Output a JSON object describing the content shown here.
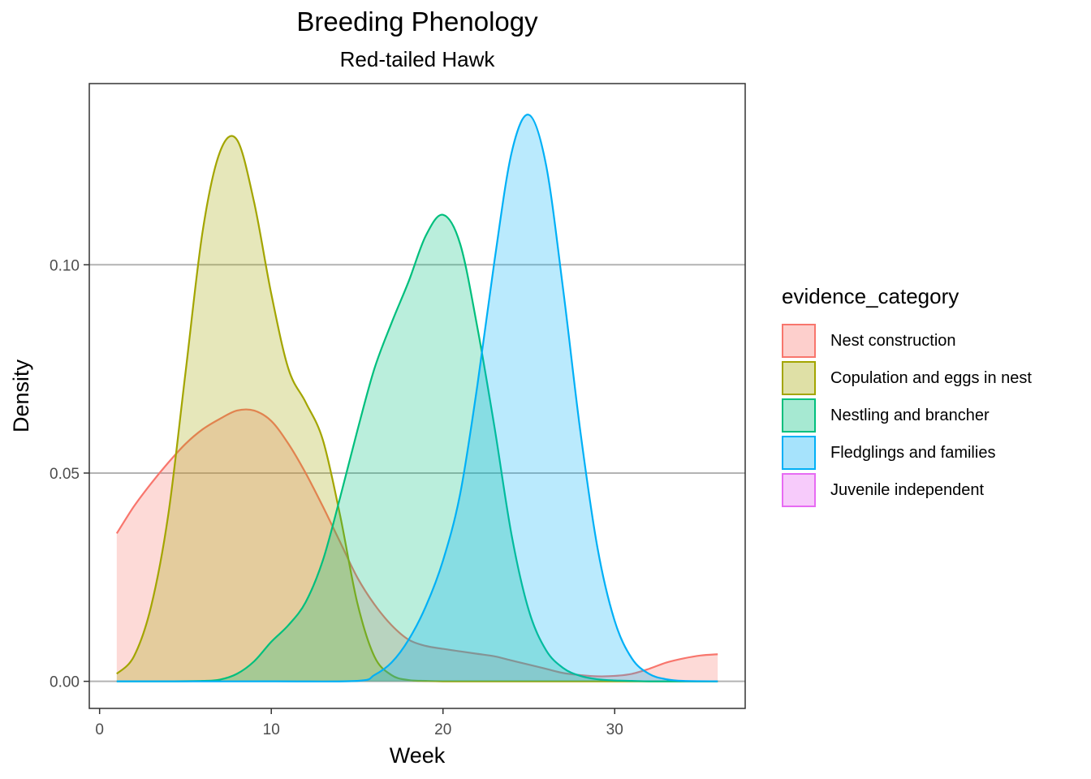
{
  "chart_data": {
    "type": "area",
    "title": "Breeding Phenology",
    "subtitle": "Red-tailed Hawk",
    "xlabel": "Week",
    "ylabel": "Density",
    "xlim": [
      -0.6,
      37.6
    ],
    "ylim": [
      -0.0065,
      0.1435
    ],
    "xticks": [
      0,
      10,
      20,
      30
    ],
    "xtick_labels": [
      "0",
      "10",
      "20",
      "30"
    ],
    "yticks": [
      0.0,
      0.05,
      0.1
    ],
    "ytick_labels": [
      "0.00",
      "0.05",
      "0.10"
    ],
    "grid": "horizontal-major",
    "legend_position": "right",
    "legend_title": "evidence_category",
    "series": [
      {
        "name": "Nest construction",
        "color": "#F8766D",
        "x": [
          1,
          2,
          3,
          4,
          5,
          6,
          7,
          8,
          9,
          10,
          11,
          12,
          13,
          14,
          15,
          16,
          17,
          18,
          19,
          20,
          21,
          22,
          23,
          24,
          25,
          26,
          27,
          28,
          29,
          30,
          31,
          32,
          33,
          34,
          35,
          36
        ],
        "y": [
          0.0355,
          0.042,
          0.0475,
          0.0525,
          0.057,
          0.0605,
          0.063,
          0.065,
          0.065,
          0.0625,
          0.057,
          0.05,
          0.042,
          0.0335,
          0.025,
          0.0185,
          0.0135,
          0.01,
          0.0085,
          0.0078,
          0.0072,
          0.0066,
          0.006,
          0.005,
          0.004,
          0.003,
          0.002,
          0.0015,
          0.0012,
          0.0013,
          0.0018,
          0.003,
          0.0045,
          0.0055,
          0.0062,
          0.0065
        ]
      },
      {
        "name": "Copulation and eggs in nest",
        "color": "#A3A500",
        "x": [
          1,
          2,
          3,
          4,
          5,
          6,
          7,
          8,
          9,
          10,
          11,
          12,
          13,
          14,
          15,
          16,
          17,
          18,
          19,
          20,
          22,
          25,
          30,
          36
        ],
        "y": [
          0.0018,
          0.006,
          0.018,
          0.04,
          0.074,
          0.108,
          0.127,
          0.13,
          0.115,
          0.093,
          0.075,
          0.067,
          0.058,
          0.04,
          0.019,
          0.006,
          0.0015,
          0.0003,
          0.0001,
          0.0,
          0.0,
          0.0,
          0.0,
          0.0
        ]
      },
      {
        "name": "Nestling and brancher",
        "color": "#00BF7D",
        "x": [
          1,
          4,
          6,
          7,
          8,
          9,
          10,
          11,
          12,
          13,
          14,
          15,
          16,
          17,
          18,
          19,
          20,
          21,
          22,
          23,
          24,
          25,
          26,
          27,
          28,
          29,
          30,
          31,
          32,
          33,
          36
        ],
        "y": [
          0.0,
          0.0,
          0.0001,
          0.0004,
          0.0018,
          0.0048,
          0.0095,
          0.0135,
          0.019,
          0.029,
          0.044,
          0.06,
          0.075,
          0.086,
          0.096,
          0.107,
          0.112,
          0.105,
          0.085,
          0.061,
          0.035,
          0.017,
          0.0075,
          0.0032,
          0.0013,
          0.0005,
          0.0002,
          0.0001,
          0.0,
          0.0,
          0.0
        ]
      },
      {
        "name": "Fledglings and families",
        "color": "#00B0F6",
        "x": [
          1,
          10,
          15,
          16,
          17,
          18,
          19,
          20,
          21,
          22,
          23,
          24,
          25,
          26,
          27,
          28,
          29,
          30,
          31,
          32,
          33,
          34,
          36
        ],
        "y": [
          0.0,
          0.0,
          0.0001,
          0.0015,
          0.0045,
          0.01,
          0.018,
          0.029,
          0.045,
          0.071,
          0.101,
          0.127,
          0.136,
          0.124,
          0.094,
          0.06,
          0.032,
          0.0145,
          0.0055,
          0.0018,
          0.0005,
          0.0001,
          0.0
        ]
      }
    ],
    "legend_only_series": [
      {
        "name": "Juvenile independent",
        "color": "#E76BF3"
      }
    ]
  }
}
